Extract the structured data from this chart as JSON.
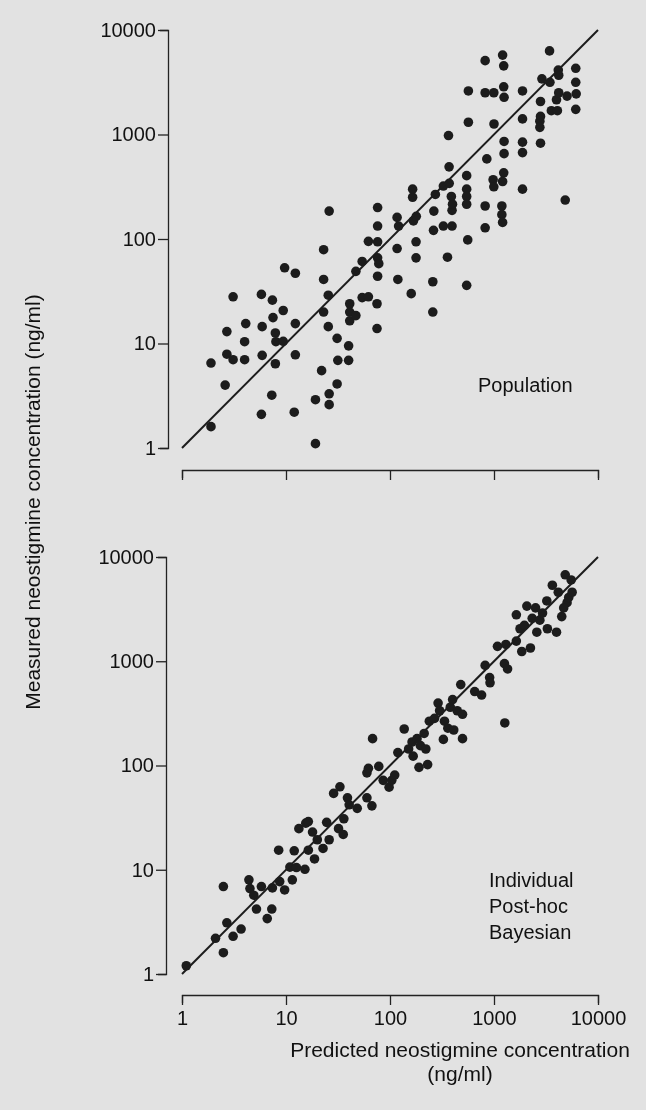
{
  "chart_data": [
    {
      "type": "scatter",
      "log": "xy",
      "tick_labels": "y",
      "ylabel": "Measured neostigmine concentration (ng/ml)",
      "xlim": [
        1,
        10000
      ],
      "ylim": [
        1,
        10000
      ],
      "xticks": [
        1,
        10,
        100,
        1000,
        10000
      ],
      "yticks": [
        1,
        10,
        100,
        1000,
        10000
      ],
      "annotations": [
        "Population"
      ],
      "series": [
        {
          "type": "scatter",
          "marker": "circle",
          "color": "#1c1c1c",
          "x": [
            1.9,
            1.9,
            2.6,
            2.7,
            2.7,
            3.1,
            3.1,
            4.0,
            4.0,
            4.1,
            5.8,
            5.9,
            5.9,
            5.8,
            7.3,
            7.4,
            7.5,
            7.9,
            8.0,
            7.9,
            9.4,
            9.4,
            9.7,
            12.3,
            12.3,
            12.3,
            12,
            19.2,
            19.2,
            22,
            23,
            23,
            23,
            25.5,
            25.5,
            26,
            26,
            26,
            31,
            31,
            31.5,
            40,
            40,
            41,
            41,
            41,
            47,
            47,
            54,
            54,
            62,
            62,
            75,
            75,
            76,
            76,
            76,
            76,
            76,
            78,
            117,
            117,
            119,
            121,
            160,
            165,
            165,
            168,
            178,
            178,
            179,
            258,
            258,
            262,
            264,
            273,
            326,
            326,
            357,
            365,
            370,
            371,
            389,
            395,
            395,
            399,
            546,
            546,
            546,
            546,
            559,
            546,
            567,
            567,
            822,
            822,
            822,
            822,
            853,
            996,
            1000,
            981,
            996,
            1210,
            1240,
            1240,
            1250,
            1250,
            1250,
            1240,
            1210,
            1190,
            1190,
            1210,
            1880,
            1880,
            1880,
            1880,
            1880,
            2760,
            2760,
            2800,
            2800,
            2800,
            2890,
            3420,
            3450,
            3560,
            3990,
            4150,
            4190,
            4190,
            4070,
            4840,
            5040,
            6110,
            6110,
            6170,
            6110
          ],
          "values": [
            1.6,
            6.5,
            4.0,
            13,
            7.9,
            7.0,
            28,
            7.0,
            10.4,
            15.5,
            29.5,
            14.5,
            7.7,
            2.1,
            3.2,
            26,
            17.7,
            12.6,
            10.4,
            6.4,
            20.7,
            10.5,
            53,
            47,
            15.5,
            7.8,
            2.2,
            1.1,
            2.9,
            5.5,
            79,
            41,
            20,
            29,
            14.5,
            185,
            3.3,
            2.6,
            11.2,
            4.1,
            6.9,
            9.5,
            6.9,
            24,
            20,
            16.5,
            18.5,
            49,
            61,
            27.5,
            28,
            95,
            24,
            13.9,
            200,
            133,
            94,
            66,
            44,
            58,
            161,
            81,
            41,
            133,
            30,
            251,
            300,
            149,
            94,
            66,
            165,
            39,
            20,
            121,
            185,
            267,
            321,
            133,
            67,
            977,
            490,
            341,
            255,
            188,
            133,
            215,
            404,
            300,
            255,
            215,
            98,
            36,
            2610,
            1310,
            5090,
            2510,
            207,
            128,
            584,
            2510,
            1260,
            369,
            316,
            5750,
            4540,
            2860,
            2270,
            858,
            656,
            430,
            355,
            207,
            171,
            144,
            2610,
            1410,
            300,
            845,
            671,
            1340,
            1170,
            1490,
            826,
            2070,
            3410,
            6310,
            3160,
            1690,
            2150,
            4140,
            3690,
            2510,
            1690,
            236,
            2330,
            4300,
            3160,
            2450,
            1740
          ]
        },
        {
          "type": "line",
          "line_style": "solid",
          "color": "#1c1c1c",
          "x": [
            1,
            10000
          ],
          "values": [
            1,
            10000
          ]
        }
      ]
    },
    {
      "type": "scatter",
      "log": "xy",
      "xlabel": "Predicted neostigmine concentration (ng/ml)",
      "xlim": [
        1,
        10000
      ],
      "ylim": [
        1,
        10000
      ],
      "xticks": [
        1,
        10,
        100,
        1000,
        10000
      ],
      "yticks": [
        1,
        10,
        100,
        1000,
        10000
      ],
      "annotations": [
        "Individual Post-hoc Bayesian"
      ],
      "series": [
        {
          "type": "scatter",
          "marker": "circle",
          "color": "#1c1c1c",
          "x": [
            1.1,
            2.1,
            2.5,
            2.5,
            2.7,
            3.1,
            3.7,
            4.4,
            4.5,
            4.9,
            5.2,
            5.8,
            6.6,
            7.3,
            7.4,
            8.5,
            8.7,
            9.7,
            10.9,
            11.5,
            12,
            12.6,
            13.3,
            15.2,
            15.5,
            16.4,
            16.4,
            18.8,
            18,
            20,
            22.7,
            24.6,
            26,
            32,
            33,
            36,
            35.5,
            28.7,
            39,
            40.5,
            48.4,
            60,
            67,
            60,
            62,
            68,
            78,
            86,
            98,
            104,
            111,
            119,
            137,
            151,
            163,
            167,
            182,
            190,
            196,
            213,
            221,
            230,
            239,
            268,
            290,
            300,
            326,
            334,
            360,
            380,
            400,
            410,
            443,
            479,
            498,
            498,
            652,
            760,
            822,
            908,
            916,
            1080,
            1260,
            1270,
            1300,
            1350,
            1640,
            1780,
            1640,
            1850,
            1960,
            2070,
            2240,
            2330,
            2510,
            2580,
            2760,
            2930,
            3220,
            3260,
            3640,
            3990,
            4150,
            4480,
            4840,
            5040,
            5230,
            5520,
            5640,
            4680
          ],
          "values": [
            1.2,
            2.2,
            1.6,
            6.9,
            3.1,
            2.3,
            2.7,
            8.0,
            6.6,
            5.7,
            4.2,
            6.9,
            3.4,
            4.2,
            6.7,
            15.4,
            7.7,
            6.4,
            10.6,
            8.0,
            15.2,
            10.5,
            24.8,
            10.1,
            28,
            29,
            15.4,
            12.7,
            23,
            19.4,
            16,
            28.5,
            19.4,
            24.8,
            62.5,
            30.8,
            21.8,
            54,
            49,
            42,
            38.8,
            49,
            41,
            85,
            94,
            181,
            98,
            72,
            62,
            72,
            81,
            133,
            224,
            144,
            168,
            123,
            181,
            96,
            155,
            203,
            144,
            102,
            266,
            283,
            397,
            335,
            178,
            266,
            228,
            362,
            429,
            219,
            335,
            597,
            310,
            181,
            512,
            474,
            912,
            697,
            621,
            1390,
            948,
            256,
            1450,
            844,
            1560,
            2050,
            2790,
            1240,
            2210,
            3380,
            1340,
            2580,
            3250,
            1900,
            2480,
            2900,
            3790,
            2050,
            5360,
            1900,
            4590,
            2680,
            6750,
            3650,
            4090,
            6020,
            4590,
            3250
          ]
        },
        {
          "type": "line",
          "line_style": "solid",
          "color": "#1c1c1c",
          "x": [
            1,
            10000
          ],
          "values": [
            1,
            10000
          ]
        }
      ]
    }
  ]
}
